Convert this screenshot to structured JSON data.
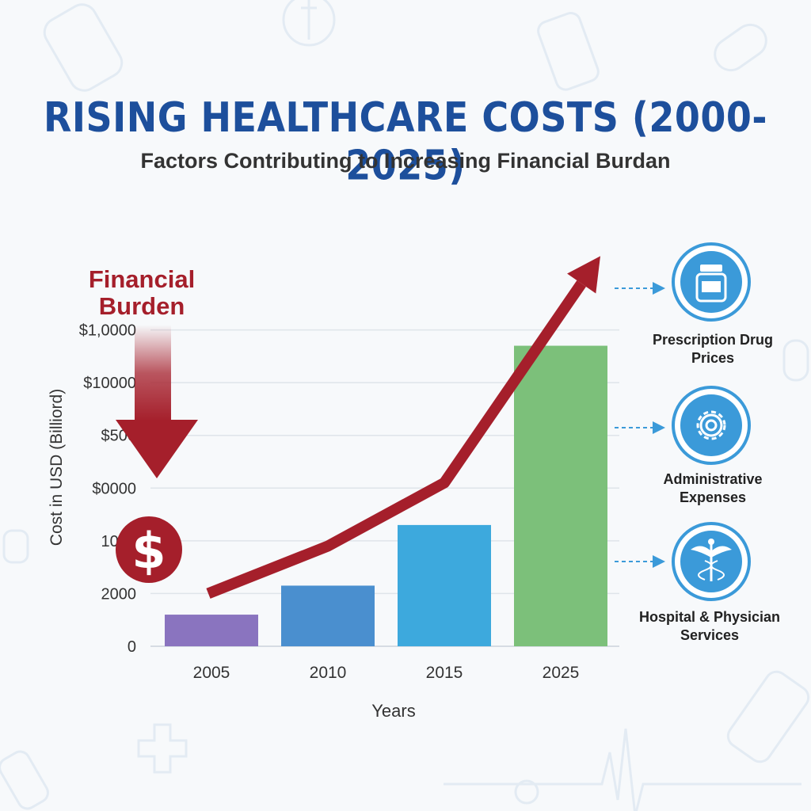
{
  "header": {
    "title": "RISING HEALTHCARE COSTS (2000-2025)",
    "subtitle": "Factors Contributing to Increasing Financial Burdan"
  },
  "callout": {
    "label": "Financial Burden",
    "icon": "dollar-icon",
    "icon_glyph": "$"
  },
  "factors": [
    {
      "label": "Prescription Drug Prices",
      "icon": "medicine-bottle-icon"
    },
    {
      "label": "Administrative Expenses",
      "icon": "gear-icon"
    },
    {
      "label": "Hospital & Physician Services",
      "icon": "caduceus-icon"
    }
  ],
  "colors": {
    "title": "#1d4f9c",
    "trend": "#a51f2b",
    "factor_ring": "#3b9ad9",
    "bars": [
      "#8a74bf",
      "#4a8fcf",
      "#3da9dd",
      "#7cc07a"
    ]
  },
  "chart_data": {
    "type": "bar",
    "xlabel": "Years",
    "ylabel": "Cost in USD (Billiord)",
    "categories": [
      "2005",
      "2010",
      "2015",
      "2025"
    ],
    "y_tick_labels": [
      "0",
      "2000",
      "1000",
      "$0000",
      "$500",
      "$10000",
      "$1,0000"
    ],
    "y_tick_values": [
      0,
      1,
      2,
      3,
      4,
      5,
      6
    ],
    "ylim": [
      0,
      7
    ],
    "values": [
      0.6,
      1.15,
      2.3,
      5.7
    ],
    "trend_line": {
      "x": [
        "2005",
        "2010",
        "2015",
        "2025"
      ],
      "y": [
        1.0,
        1.9,
        3.1,
        7.4
      ]
    },
    "grid": true
  }
}
